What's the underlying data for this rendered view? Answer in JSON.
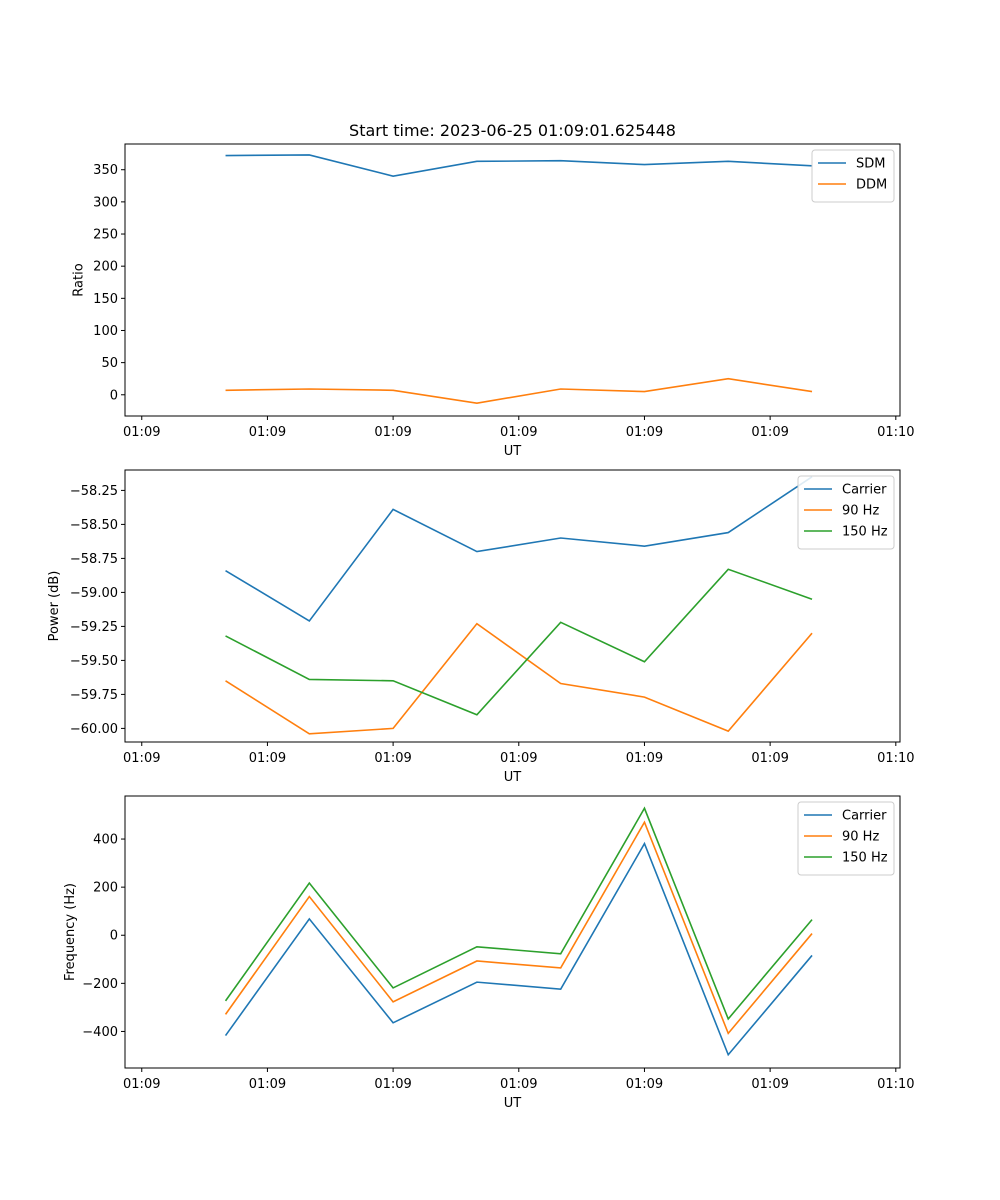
{
  "title": "Start time: 2023-06-25 01:09:01.625448",
  "colors": {
    "c0": "#1f77b4",
    "c1": "#ff7f0e",
    "c2": "#2ca02c"
  },
  "chart_data": [
    {
      "type": "line",
      "xlabel": "UT",
      "ylabel": "Ratio",
      "x": [
        1,
        2,
        3,
        4,
        5,
        6,
        7,
        8
      ],
      "x_ticks": [
        0,
        1.5,
        3,
        4.5,
        6,
        7.5,
        9
      ],
      "x_tick_labels": [
        "01:09",
        "01:09",
        "01:09",
        "01:09",
        "01:09",
        "01:09",
        "01:10"
      ],
      "xlim": [
        -0.2,
        9.05
      ],
      "ylim": [
        -33,
        390
      ],
      "y_ticks": [
        0,
        50,
        100,
        150,
        200,
        250,
        300,
        350
      ],
      "y_tick_labels": [
        "0",
        "50",
        "100",
        "150",
        "200",
        "250",
        "300",
        "350"
      ],
      "legend_position": "top-right",
      "series": [
        {
          "name": "SDM",
          "color": "#1f77b4",
          "values": [
            372,
            373,
            340,
            363,
            364,
            358,
            363,
            356
          ]
        },
        {
          "name": "DDM",
          "color": "#ff7f0e",
          "values": [
            7,
            9,
            7,
            -13,
            9,
            5,
            25,
            5
          ]
        }
      ]
    },
    {
      "type": "line",
      "xlabel": "UT",
      "ylabel": "Power (dB)",
      "x": [
        1,
        2,
        3,
        4,
        5,
        6,
        7,
        8
      ],
      "x_ticks": [
        0,
        1.5,
        3,
        4.5,
        6,
        7.5,
        9
      ],
      "x_tick_labels": [
        "01:09",
        "01:09",
        "01:09",
        "01:09",
        "01:09",
        "01:09",
        "01:10"
      ],
      "xlim": [
        -0.2,
        9.05
      ],
      "ylim": [
        -60.1,
        -58.1
      ],
      "y_ticks": [
        -60.0,
        -59.75,
        -59.5,
        -59.25,
        -59.0,
        -58.75,
        -58.5,
        -58.25
      ],
      "y_tick_labels": [
        "−60.00",
        "−59.75",
        "−59.50",
        "−59.25",
        "−59.00",
        "−58.75",
        "−58.50",
        "−58.25"
      ],
      "legend_position": "top-right",
      "series": [
        {
          "name": "Carrier",
          "color": "#1f77b4",
          "values": [
            -58.84,
            -59.21,
            -58.39,
            -58.7,
            -58.6,
            -58.66,
            -58.56,
            -58.15
          ]
        },
        {
          "name": "90 Hz",
          "color": "#ff7f0e",
          "values": [
            -59.65,
            -60.04,
            -60.0,
            -59.23,
            -59.67,
            -59.77,
            -60.02,
            -59.3
          ]
        },
        {
          "name": "150 Hz",
          "color": "#2ca02c",
          "values": [
            -59.32,
            -59.64,
            -59.65,
            -59.9,
            -59.22,
            -59.51,
            -58.83,
            -59.05
          ]
        }
      ]
    },
    {
      "type": "line",
      "xlabel": "UT",
      "ylabel": "Frequency (Hz)",
      "x": [
        1,
        2,
        3,
        4,
        5,
        6,
        7,
        8
      ],
      "x_ticks": [
        0,
        1.5,
        3,
        4.5,
        6,
        7.5,
        9
      ],
      "x_tick_labels": [
        "01:09",
        "01:09",
        "01:09",
        "01:09",
        "01:09",
        "01:09",
        "01:10"
      ],
      "xlim": [
        -0.2,
        9.05
      ],
      "ylim": [
        -552,
        579
      ],
      "y_ticks": [
        -400,
        -200,
        0,
        200,
        400
      ],
      "y_tick_labels": [
        "−400",
        "−200",
        "0",
        "200",
        "400"
      ],
      "legend_position": "top-right",
      "series": [
        {
          "name": "Carrier",
          "color": "#1f77b4",
          "values": [
            -417,
            68,
            -364,
            -195,
            -224,
            381,
            -497,
            -84
          ]
        },
        {
          "name": "90 Hz",
          "color": "#ff7f0e",
          "values": [
            -329,
            161,
            -277,
            -107,
            -136,
            470,
            -408,
            7
          ]
        },
        {
          "name": "150 Hz",
          "color": "#2ca02c",
          "values": [
            -273,
            217,
            -219,
            -48,
            -77,
            528,
            -348,
            65
          ]
        }
      ]
    }
  ]
}
